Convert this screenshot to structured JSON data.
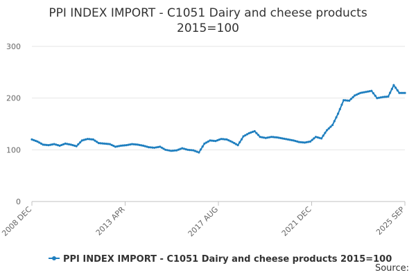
{
  "page": {
    "title_line1": "PPI INDEX IMPORT - C1051 Dairy and cheese products",
    "title_line2": "2015=100",
    "source_label": "Source:"
  },
  "chart_data": {
    "type": "line",
    "title": "PPI INDEX IMPORT - C1051 Dairy and cheese products 2015=100",
    "ylim": [
      0,
      300
    ],
    "y_ticks": [
      0,
      100,
      200,
      300
    ],
    "x_tick_labels": [
      "2008 DEC",
      "2013 APR",
      "2017 AUG",
      "2021 DEC",
      "2025 SEP"
    ],
    "grid": "horizontal",
    "legend": "bottom",
    "series": [
      {
        "name": "PPI INDEX IMPORT - C1051 Dairy and cheese products 2015=100",
        "color": "#1f7fbf",
        "x": [
          "2008-12",
          "2009-03",
          "2009-06",
          "2009-09",
          "2009-12",
          "2010-03",
          "2010-06",
          "2010-09",
          "2010-12",
          "2011-03",
          "2011-06",
          "2011-09",
          "2011-12",
          "2012-03",
          "2012-06",
          "2012-09",
          "2012-12",
          "2013-03",
          "2013-06",
          "2013-09",
          "2013-12",
          "2014-03",
          "2014-06",
          "2014-09",
          "2014-12",
          "2015-03",
          "2015-06",
          "2015-09",
          "2015-12",
          "2016-03",
          "2016-06",
          "2016-09",
          "2016-12",
          "2017-03",
          "2017-06",
          "2017-09",
          "2017-12",
          "2018-03",
          "2018-06",
          "2018-09",
          "2018-12",
          "2019-03",
          "2019-06",
          "2019-09",
          "2019-12",
          "2020-03",
          "2020-06",
          "2020-09",
          "2020-12",
          "2021-03",
          "2021-06",
          "2021-09",
          "2021-12",
          "2022-03",
          "2022-06",
          "2022-09",
          "2022-12",
          "2023-03",
          "2023-06",
          "2023-09",
          "2023-12",
          "2024-03",
          "2024-06",
          "2024-09",
          "2024-12",
          "2025-03",
          "2025-06",
          "2025-09"
        ],
        "values": [
          120,
          116,
          110,
          109,
          111,
          108,
          112,
          110,
          107,
          118,
          121,
          120,
          113,
          112,
          111,
          106,
          108,
          109,
          111,
          110,
          108,
          105,
          104,
          106,
          100,
          98,
          99,
          103,
          100,
          99,
          95,
          112,
          118,
          117,
          121,
          120,
          115,
          109,
          126,
          132,
          136,
          125,
          123,
          125,
          124,
          122,
          120,
          118,
          115,
          114,
          116,
          125,
          122,
          138,
          148,
          170,
          196,
          195,
          205,
          210,
          212,
          214,
          200,
          202,
          203,
          225,
          210,
          210
        ]
      }
    ]
  }
}
